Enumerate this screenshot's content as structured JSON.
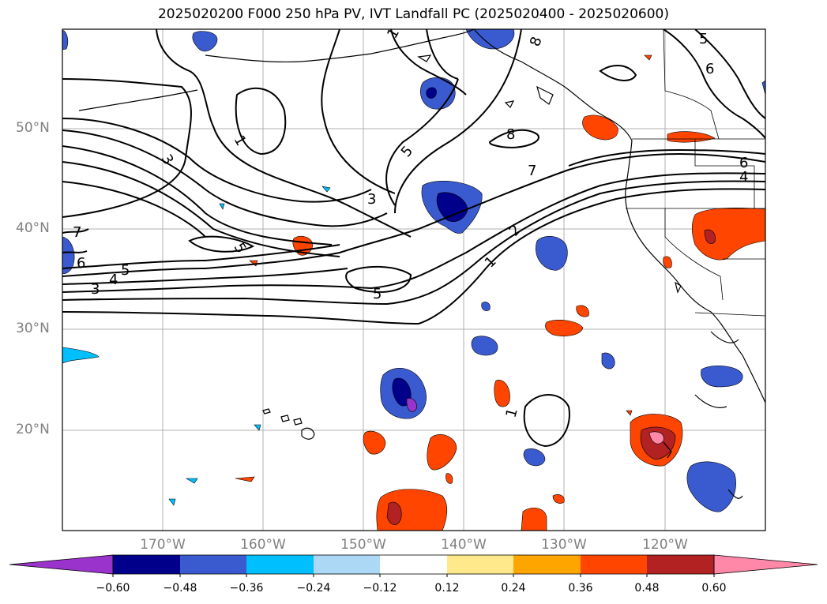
{
  "title": "2025020200 F000 250 hPa PV, IVT Landfall PC (2025020400 - 2025020600)",
  "lat_labels": [
    "50°N",
    "40°N",
    "30°N",
    "20°N"
  ],
  "lon_labels": [
    "170°W",
    "160°W",
    "150°W",
    "140°W",
    "130°W",
    "120°W"
  ],
  "colorbar": {
    "ticks": [
      "−0.60",
      "−0.48",
      "−0.36",
      "−0.24",
      "−0.12",
      "0.12",
      "0.24",
      "0.36",
      "0.48",
      "0.60"
    ],
    "colors": [
      "#9933cc",
      "#00008b",
      "#3a5bd0",
      "#00bfff",
      "#add8f5",
      "#ffffff",
      "#ffe98a",
      "#ffa500",
      "#ff4500",
      "#b22222",
      "#ff88a8"
    ]
  },
  "contour_labels": [
    "1",
    "8",
    "5",
    "6",
    "1",
    "3",
    "5",
    "8",
    "7",
    "6",
    "4",
    "7",
    "3",
    "2",
    "1",
    "5",
    "7",
    "6",
    "4",
    "3",
    "5",
    "5",
    "1"
  ],
  "map_data": {
    "type": "filled contour map with line contours",
    "lat_range": [
      10,
      60
    ],
    "lon_range": [
      -180,
      -110
    ],
    "fill_variable": "IVT Landfall PC",
    "line_variable": "250 hPa PV"
  }
}
